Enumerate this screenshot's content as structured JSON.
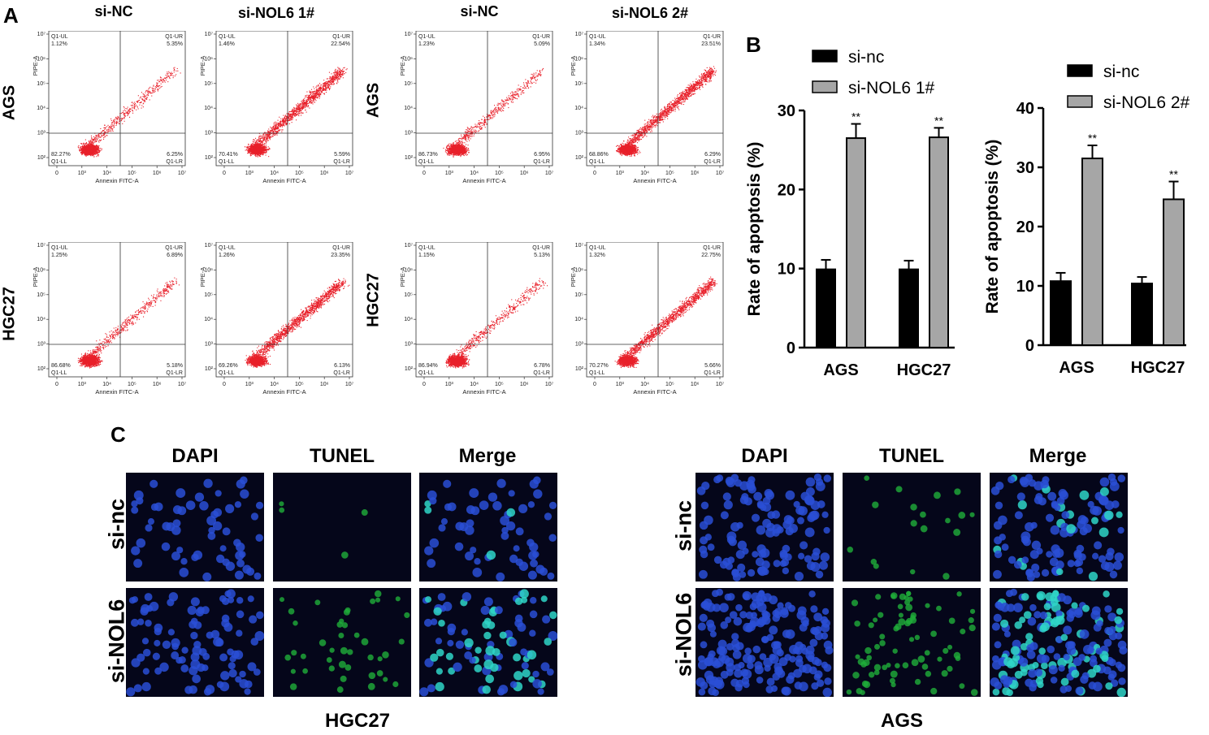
{
  "panel_a": {
    "letter": "A",
    "column_titles": [
      "si-NC",
      "si-NOL6 1#",
      "si-NC",
      "si-NOL6 2#"
    ],
    "row_labels": [
      "AGS",
      "HGC27",
      "AGS",
      "HGC27"
    ],
    "x_axis_label": "Annexin FITC-A",
    "y_axis_label": "PIPE-A",
    "x_ticks": [
      "0",
      "10³",
      "10⁴",
      "10⁵",
      "10⁶",
      "10⁷"
    ],
    "y_ticks": [
      "10²",
      "10³",
      "10⁴",
      "10⁵",
      "10⁶",
      "10⁷"
    ],
    "quadrant_names": {
      "ul": "Q1-UL",
      "ur": "Q1-UR",
      "ll": "Q1-LL",
      "lr": "Q1-LR"
    },
    "plots": [
      {
        "ul": "1.12%",
        "ur": "5.35%",
        "ll": "82.27%",
        "lr": "6.25%"
      },
      {
        "ul": "1.46%",
        "ur": "22.54%",
        "ll": "70.41%",
        "lr": "5.59%"
      },
      {
        "ul": "1.23%",
        "ur": "5.09%",
        "ll": "86.73%",
        "lr": "6.95%"
      },
      {
        "ul": "1.34%",
        "ur": "23.51%",
        "ll": "68.86%",
        "lr": "6.29%"
      },
      {
        "ul": "1.25%",
        "ur": "6.89%",
        "ll": "86.68%",
        "lr": "5.18%"
      },
      {
        "ul": "1.26%",
        "ur": "23.35%",
        "ll": "69.26%",
        "lr": "6.13%"
      },
      {
        "ul": "1.15%",
        "ur": "5.13%",
        "ll": "86.94%",
        "lr": "6.78%"
      },
      {
        "ul": "1.32%",
        "ur": "22.75%",
        "ll": "70.27%",
        "lr": "5.66%"
      }
    ],
    "dot_color": "#e8202a"
  },
  "panel_b": {
    "letter": "B",
    "colors": {
      "si_nc": "#000000",
      "si_nol6": "#a6a6a6"
    },
    "significance": "**"
  },
  "chart_data": [
    {
      "type": "bar",
      "categories": [
        "AGS",
        "HGC27"
      ],
      "ylabel": "Rate of apoptosis (%)",
      "ylim": [
        0,
        30
      ],
      "yticks": [
        0,
        10,
        20,
        30
      ],
      "legend_position": "top",
      "series": [
        {
          "name": "si-nc",
          "values": [
            9.9,
            9.9
          ],
          "errors": [
            1.2,
            1.1
          ]
        },
        {
          "name": "si-NOL6 1#",
          "values": [
            26.5,
            26.6
          ],
          "errors": [
            1.8,
            1.2
          ]
        }
      ],
      "annotations": [
        "**",
        "**"
      ]
    },
    {
      "type": "bar",
      "categories": [
        "AGS",
        "HGC27"
      ],
      "ylabel": "Rate of apoptosis (%)",
      "ylim": [
        0,
        40
      ],
      "yticks": [
        0,
        10,
        20,
        30,
        40
      ],
      "legend_position": "top",
      "series": [
        {
          "name": "si-nc",
          "values": [
            10.8,
            10.4
          ],
          "errors": [
            1.4,
            1.1
          ]
        },
        {
          "name": "si-NOL6 2#",
          "values": [
            31.5,
            24.6
          ],
          "errors": [
            2.2,
            3.0
          ]
        }
      ],
      "annotations": [
        "**",
        "**"
      ]
    }
  ],
  "panel_c": {
    "letter": "C",
    "stain_titles": [
      "DAPI",
      "TUNEL",
      "Merge"
    ],
    "row_labels": [
      "si-nc",
      "si-NOL6"
    ],
    "cell_lines": [
      "HGC27",
      "AGS"
    ],
    "colors": {
      "dapi": "#2a4fd6",
      "tunel": "#1fae3a",
      "merge": "#2fd6c8",
      "background": "#05061a"
    }
  }
}
